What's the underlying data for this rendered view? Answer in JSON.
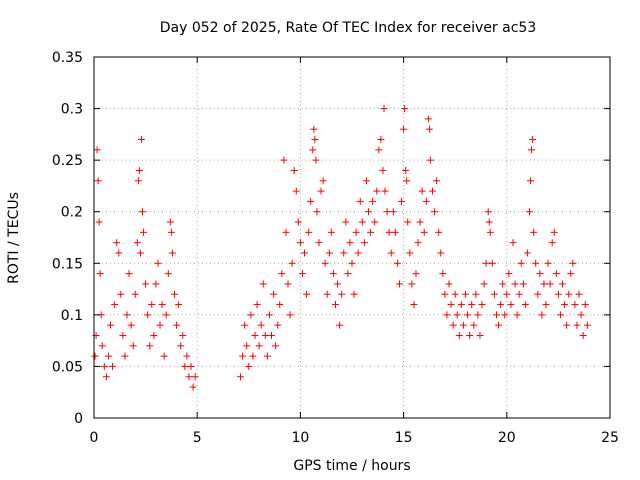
{
  "chart_data": {
    "type": "scatter",
    "title": "Day 052 of 2025, Rate Of TEC Index for receiver ac53",
    "xlabel": "GPS time / hours",
    "ylabel": "ROTI / TECUs",
    "xlim": [
      0,
      25
    ],
    "ylim": [
      0,
      0.35
    ],
    "x_ticks": [
      "0",
      "5",
      "10",
      "15",
      "20",
      "25"
    ],
    "y_ticks": [
      "0",
      "0.05",
      "0.1",
      "0.15",
      "0.2",
      "0.25",
      "0.3",
      "0.35"
    ],
    "x_tick_values": [
      0,
      5,
      10,
      15,
      20,
      25
    ],
    "y_tick_values": [
      0,
      0.05,
      0.1,
      0.15,
      0.2,
      0.25,
      0.3,
      0.35
    ],
    "grid": true,
    "marker": "+",
    "color": "#ff0000",
    "series": [
      {
        "points": [
          [
            0.05,
            0.06
          ],
          [
            0.1,
            0.08
          ],
          [
            0.15,
            0.26
          ],
          [
            0.2,
            0.23
          ],
          [
            0.25,
            0.19
          ],
          [
            0.3,
            0.14
          ],
          [
            0.35,
            0.1
          ],
          [
            0.4,
            0.07
          ],
          [
            0.5,
            0.05
          ],
          [
            0.6,
            0.04
          ],
          [
            0.7,
            0.06
          ],
          [
            0.8,
            0.09
          ],
          [
            0.9,
            0.05
          ],
          [
            1.0,
            0.11
          ],
          [
            1.1,
            0.17
          ],
          [
            1.2,
            0.16
          ],
          [
            1.3,
            0.12
          ],
          [
            1.4,
            0.08
          ],
          [
            1.5,
            0.06
          ],
          [
            1.6,
            0.1
          ],
          [
            1.7,
            0.14
          ],
          [
            1.8,
            0.09
          ],
          [
            1.9,
            0.07
          ],
          [
            2.0,
            0.12
          ],
          [
            2.1,
            0.17
          ],
          [
            2.15,
            0.23
          ],
          [
            2.2,
            0.24
          ],
          [
            2.25,
            0.16
          ],
          [
            2.3,
            0.27
          ],
          [
            2.35,
            0.2
          ],
          [
            2.4,
            0.18
          ],
          [
            2.5,
            0.13
          ],
          [
            2.6,
            0.1
          ],
          [
            2.7,
            0.07
          ],
          [
            2.8,
            0.11
          ],
          [
            2.9,
            0.08
          ],
          [
            3.0,
            0.13
          ],
          [
            3.1,
            0.15
          ],
          [
            3.2,
            0.09
          ],
          [
            3.3,
            0.11
          ],
          [
            3.4,
            0.06
          ],
          [
            3.5,
            0.1
          ],
          [
            3.6,
            0.14
          ],
          [
            3.7,
            0.19
          ],
          [
            3.75,
            0.18
          ],
          [
            3.8,
            0.16
          ],
          [
            3.9,
            0.12
          ],
          [
            4.0,
            0.09
          ],
          [
            4.1,
            0.11
          ],
          [
            4.2,
            0.07
          ],
          [
            4.3,
            0.08
          ],
          [
            4.4,
            0.05
          ],
          [
            4.5,
            0.06
          ],
          [
            4.6,
            0.04
          ],
          [
            4.7,
            0.05
          ],
          [
            4.8,
            0.03
          ],
          [
            4.9,
            0.04
          ],
          [
            7.1,
            0.04
          ],
          [
            7.2,
            0.06
          ],
          [
            7.3,
            0.09
          ],
          [
            7.4,
            0.07
          ],
          [
            7.5,
            0.05
          ],
          [
            7.6,
            0.1
          ],
          [
            7.7,
            0.06
          ],
          [
            7.8,
            0.08
          ],
          [
            7.9,
            0.11
          ],
          [
            8.0,
            0.07
          ],
          [
            8.1,
            0.09
          ],
          [
            8.2,
            0.13
          ],
          [
            8.3,
            0.08
          ],
          [
            8.4,
            0.06
          ],
          [
            8.5,
            0.1
          ],
          [
            8.6,
            0.08
          ],
          [
            8.7,
            0.12
          ],
          [
            8.8,
            0.07
          ],
          [
            8.9,
            0.09
          ],
          [
            9.0,
            0.11
          ],
          [
            9.1,
            0.14
          ],
          [
            9.2,
            0.25
          ],
          [
            9.3,
            0.18
          ],
          [
            9.4,
            0.13
          ],
          [
            9.5,
            0.1
          ],
          [
            9.6,
            0.15
          ],
          [
            9.7,
            0.24
          ],
          [
            9.8,
            0.22
          ],
          [
            9.9,
            0.19
          ],
          [
            10.0,
            0.17
          ],
          [
            10.1,
            0.14
          ],
          [
            10.2,
            0.16
          ],
          [
            10.3,
            0.12
          ],
          [
            10.4,
            0.18
          ],
          [
            10.5,
            0.21
          ],
          [
            10.6,
            0.26
          ],
          [
            10.65,
            0.28
          ],
          [
            10.7,
            0.27
          ],
          [
            10.75,
            0.25
          ],
          [
            10.8,
            0.2
          ],
          [
            10.9,
            0.17
          ],
          [
            11.0,
            0.22
          ],
          [
            11.1,
            0.23
          ],
          [
            11.2,
            0.15
          ],
          [
            11.3,
            0.12
          ],
          [
            11.4,
            0.16
          ],
          [
            11.5,
            0.18
          ],
          [
            11.6,
            0.14
          ],
          [
            11.7,
            0.11
          ],
          [
            11.8,
            0.13
          ],
          [
            11.9,
            0.09
          ],
          [
            12.0,
            0.12
          ],
          [
            12.1,
            0.16
          ],
          [
            12.2,
            0.19
          ],
          [
            12.3,
            0.14
          ],
          [
            12.4,
            0.17
          ],
          [
            12.5,
            0.15
          ],
          [
            12.6,
            0.12
          ],
          [
            12.7,
            0.18
          ],
          [
            12.8,
            0.16
          ],
          [
            12.9,
            0.21
          ],
          [
            13.0,
            0.19
          ],
          [
            13.1,
            0.17
          ],
          [
            13.2,
            0.23
          ],
          [
            13.3,
            0.2
          ],
          [
            13.4,
            0.18
          ],
          [
            13.5,
            0.21
          ],
          [
            13.6,
            0.19
          ],
          [
            13.7,
            0.22
          ],
          [
            13.8,
            0.26
          ],
          [
            13.9,
            0.27
          ],
          [
            14.0,
            0.24
          ],
          [
            14.05,
            0.3
          ],
          [
            14.1,
            0.22
          ],
          [
            14.2,
            0.2
          ],
          [
            14.3,
            0.18
          ],
          [
            14.4,
            0.16
          ],
          [
            14.5,
            0.2
          ],
          [
            14.6,
            0.18
          ],
          [
            14.7,
            0.15
          ],
          [
            14.8,
            0.13
          ],
          [
            14.9,
            0.21
          ],
          [
            15.0,
            0.28
          ],
          [
            15.05,
            0.3
          ],
          [
            15.1,
            0.24
          ],
          [
            15.15,
            0.23
          ],
          [
            15.2,
            0.19
          ],
          [
            15.3,
            0.16
          ],
          [
            15.4,
            0.13
          ],
          [
            15.5,
            0.11
          ],
          [
            15.6,
            0.14
          ],
          [
            15.7,
            0.17
          ],
          [
            15.8,
            0.19
          ],
          [
            15.9,
            0.22
          ],
          [
            16.0,
            0.18
          ],
          [
            16.1,
            0.21
          ],
          [
            16.2,
            0.29
          ],
          [
            16.25,
            0.28
          ],
          [
            16.3,
            0.25
          ],
          [
            16.4,
            0.22
          ],
          [
            16.5,
            0.2
          ],
          [
            16.6,
            0.23
          ],
          [
            16.7,
            0.18
          ],
          [
            16.8,
            0.16
          ],
          [
            16.9,
            0.14
          ],
          [
            17.0,
            0.12
          ],
          [
            17.1,
            0.1
          ],
          [
            17.2,
            0.13
          ],
          [
            17.3,
            0.11
          ],
          [
            17.4,
            0.09
          ],
          [
            17.5,
            0.12
          ],
          [
            17.6,
            0.1
          ],
          [
            17.7,
            0.08
          ],
          [
            17.8,
            0.11
          ],
          [
            17.9,
            0.09
          ],
          [
            18.0,
            0.12
          ],
          [
            18.1,
            0.1
          ],
          [
            18.2,
            0.08
          ],
          [
            18.3,
            0.11
          ],
          [
            18.4,
            0.09
          ],
          [
            18.5,
            0.12
          ],
          [
            18.6,
            0.1
          ],
          [
            18.7,
            0.08
          ],
          [
            18.8,
            0.11
          ],
          [
            18.9,
            0.13
          ],
          [
            19.0,
            0.15
          ],
          [
            19.1,
            0.2
          ],
          [
            19.15,
            0.19
          ],
          [
            19.2,
            0.18
          ],
          [
            19.3,
            0.15
          ],
          [
            19.4,
            0.12
          ],
          [
            19.5,
            0.1
          ],
          [
            19.6,
            0.09
          ],
          [
            19.7,
            0.11
          ],
          [
            19.8,
            0.13
          ],
          [
            19.9,
            0.1
          ],
          [
            20.0,
            0.12
          ],
          [
            20.1,
            0.14
          ],
          [
            20.2,
            0.11
          ],
          [
            20.3,
            0.17
          ],
          [
            20.4,
            0.13
          ],
          [
            20.5,
            0.1
          ],
          [
            20.6,
            0.12
          ],
          [
            20.7,
            0.15
          ],
          [
            20.8,
            0.13
          ],
          [
            20.9,
            0.11
          ],
          [
            21.0,
            0.16
          ],
          [
            21.1,
            0.2
          ],
          [
            21.15,
            0.23
          ],
          [
            21.2,
            0.26
          ],
          [
            21.25,
            0.27
          ],
          [
            21.3,
            0.18
          ],
          [
            21.4,
            0.15
          ],
          [
            21.5,
            0.12
          ],
          [
            21.6,
            0.14
          ],
          [
            21.7,
            0.1
          ],
          [
            21.8,
            0.13
          ],
          [
            21.9,
            0.11
          ],
          [
            22.0,
            0.15
          ],
          [
            22.1,
            0.13
          ],
          [
            22.2,
            0.17
          ],
          [
            22.3,
            0.18
          ],
          [
            22.4,
            0.14
          ],
          [
            22.5,
            0.12
          ],
          [
            22.6,
            0.1
          ],
          [
            22.7,
            0.13
          ],
          [
            22.8,
            0.11
          ],
          [
            22.9,
            0.09
          ],
          [
            23.0,
            0.12
          ],
          [
            23.1,
            0.14
          ],
          [
            23.2,
            0.15
          ],
          [
            23.3,
            0.11
          ],
          [
            23.4,
            0.09
          ],
          [
            23.5,
            0.12
          ],
          [
            23.6,
            0.1
          ],
          [
            23.7,
            0.08
          ],
          [
            23.8,
            0.11
          ],
          [
            23.9,
            0.09
          ]
        ]
      }
    ]
  }
}
